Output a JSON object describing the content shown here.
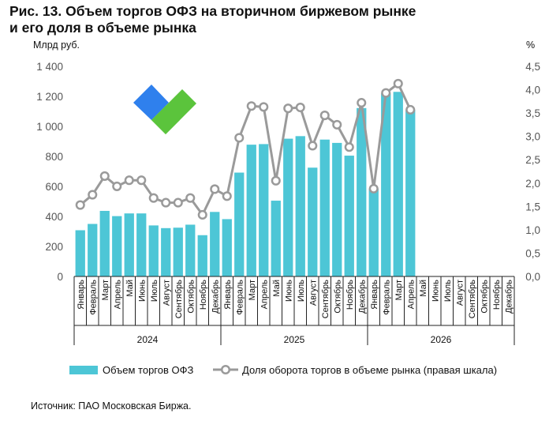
{
  "title": {
    "line1": "Рис. 13. Объем торгов ОФЗ на вторичном биржевом рынке",
    "line2": "и его доля в объеме рынка"
  },
  "source": "Источник: ПАО Московская Биржа.",
  "colors": {
    "bar": "#4DC6D6",
    "line": "#9A9A9A",
    "logo_blue": "#2F80ED",
    "logo_green": "#5BC43C"
  },
  "chart_data": {
    "type": "bar+line",
    "left_axis_label": "Млрд руб.",
    "right_axis_label": "%",
    "left_ylim": [
      0,
      1400
    ],
    "right_ylim": [
      0,
      4.5
    ],
    "left_ticks": [
      "0",
      "200",
      "400",
      "600",
      "800",
      "1 000",
      "1 200",
      "1 400"
    ],
    "right_ticks": [
      "0,0",
      "0,5",
      "1,0",
      "1,5",
      "2,0",
      "2,5",
      "3,0",
      "3,5",
      "4,0",
      "4,5"
    ],
    "grid": false,
    "legend_position": "bottom",
    "months": [
      "Январь",
      "Февраль",
      "Март",
      "Апрель",
      "Май",
      "Июнь",
      "Июль",
      "Август",
      "Сентябрь",
      "Октябрь",
      "Ноябрь",
      "Декабрь"
    ],
    "years": [
      "2024",
      "2025",
      "2026"
    ],
    "series": [
      {
        "name": "Объем торгов ОФЗ",
        "kind": "bar",
        "axis": "left",
        "values": [
          308,
          350,
          437,
          402,
          420,
          420,
          340,
          322,
          325,
          345,
          275,
          430,
          382,
          692,
          878,
          882,
          505,
          918,
          935,
          725,
          912,
          890,
          805,
          1122,
          585,
          1220,
          1230,
          1110
        ]
      },
      {
        "name": "Доля оборота торгов в объеме рынка (правая шкала)",
        "kind": "line",
        "axis": "right",
        "values": [
          1.53,
          1.75,
          2.15,
          1.93,
          2.06,
          2.06,
          1.68,
          1.58,
          1.58,
          1.68,
          1.32,
          1.87,
          1.72,
          2.97,
          3.65,
          3.63,
          2.05,
          3.6,
          3.62,
          2.8,
          3.45,
          3.25,
          2.77,
          3.72,
          1.88,
          3.93,
          4.13,
          3.57
        ]
      }
    ]
  }
}
